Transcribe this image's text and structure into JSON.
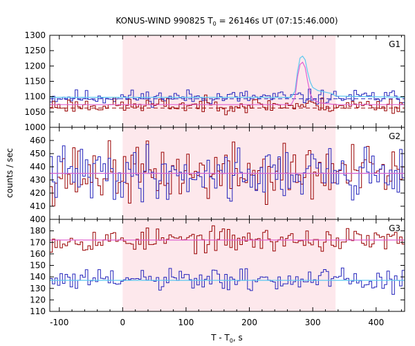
{
  "chart_data": {
    "type": "line",
    "title": "KONUS-WIND 990825 T",
    "title_sub": "0",
    "title_rest": " = 26146s UT (07:15:46.000)",
    "xlabel_main": "T - T",
    "xlabel_sub": "0",
    "xlabel_rest": ", s",
    "ylabel": "counts / sec",
    "xlim": [
      -115,
      445
    ],
    "xticks": [
      -100,
      0,
      100,
      200,
      300,
      400
    ],
    "shaded_interval": [
      0,
      336
    ],
    "bin_width": 4,
    "colors": {
      "red": "#990000",
      "blue": "#2222bb",
      "cyan": "#5bc8f0",
      "pink": "#e060d0",
      "shade": "#fde8ec"
    },
    "panels": [
      {
        "label": "G1",
        "ylim": [
          1000,
          1300
        ],
        "yticks": [
          1000,
          1050,
          1100,
          1150,
          1200,
          1250,
          1300
        ],
        "series": [
          {
            "color": "blue",
            "base": 1098,
            "noise": 12,
            "seed": 11,
            "peaks": [
              [
                268,
                1118
              ],
              [
                272,
                1135
              ],
              [
                276,
                1180
              ],
              [
                280,
                1232
              ],
              [
                284,
                1240
              ],
              [
                288,
                1228
              ],
              [
                292,
                1185
              ],
              [
                296,
                1150
              ],
              [
                300,
                1128
              ],
              [
                304,
                1120
              ],
              [
                308,
                1112
              ]
            ]
          },
          {
            "color": "red",
            "base": 1072,
            "noise": 12,
            "seed": 23,
            "peaks": [
              [
                268,
                1092
              ],
              [
                272,
                1115
              ],
              [
                276,
                1170
              ],
              [
                280,
                1215
              ],
              [
                284,
                1222
              ],
              [
                288,
                1205
              ],
              [
                292,
                1160
              ],
              [
                296,
                1110
              ],
              [
                300,
                1090
              ],
              [
                304,
                1082
              ],
              [
                308,
                1080
              ]
            ]
          }
        ],
        "fits": [
          {
            "color": "cyan",
            "points": [
              [
                -115,
                1098
              ],
              [
                266,
                1098
              ],
              [
                272,
                1118
              ],
              [
                276,
                1182
              ],
              [
                280,
                1226
              ],
              [
                284,
                1232
              ],
              [
                288,
                1220
              ],
              [
                292,
                1180
              ],
              [
                296,
                1148
              ],
              [
                300,
                1130
              ],
              [
                308,
                1120
              ],
              [
                330,
                1110
              ],
              [
                336,
                1102
              ],
              [
                445,
                1098
              ]
            ]
          },
          {
            "color": "pink",
            "points": [
              [
                -115,
                1074
              ],
              [
                266,
                1074
              ],
              [
                272,
                1098
              ],
              [
                276,
                1165
              ],
              [
                280,
                1205
              ],
              [
                284,
                1212
              ],
              [
                288,
                1195
              ],
              [
                292,
                1150
              ],
              [
                296,
                1110
              ],
              [
                300,
                1092
              ],
              [
                310,
                1080
              ],
              [
                336,
                1074
              ],
              [
                445,
                1074
              ]
            ]
          }
        ],
        "background_levels": [
          {
            "color": "blue",
            "value": 1093
          },
          {
            "color": "red",
            "value": 1063
          }
        ]
      },
      {
        "label": "G2",
        "ylim": [
          400,
          470
        ],
        "yticks": [
          400,
          410,
          420,
          430,
          440,
          450,
          460
        ],
        "series": [
          {
            "color": "red",
            "base": 435,
            "noise": 11,
            "seed": 37,
            "peaks": []
          },
          {
            "color": "blue",
            "base": 435,
            "noise": 10,
            "seed": 41,
            "peaks": []
          }
        ],
        "fits": [
          {
            "color": "cyan",
            "points": [
              [
                -115,
                435
              ],
              [
                445,
                435
              ]
            ]
          },
          {
            "color": "pink",
            "points": [
              [
                -115,
                435
              ],
              [
                445,
                435
              ]
            ]
          }
        ],
        "background_levels": []
      },
      {
        "label": "G3",
        "ylim": [
          110,
          190
        ],
        "yticks": [
          110,
          120,
          130,
          140,
          150,
          160,
          170,
          180
        ],
        "series": [
          {
            "color": "red",
            "base": 172,
            "noise": 5,
            "seed": 53,
            "peaks": []
          },
          {
            "color": "blue",
            "base": 137,
            "noise": 5,
            "seed": 61,
            "peaks": []
          }
        ],
        "fits": [
          {
            "color": "pink",
            "points": [
              [
                -115,
                172
              ],
              [
                445,
                172
              ]
            ]
          },
          {
            "color": "cyan",
            "points": [
              [
                -115,
                137
              ],
              [
                445,
                137
              ]
            ]
          }
        ],
        "background_levels": []
      }
    ]
  }
}
